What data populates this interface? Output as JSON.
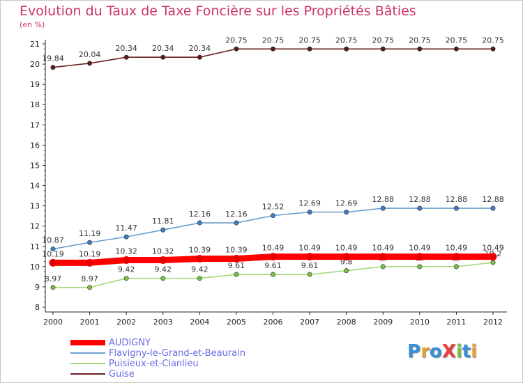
{
  "title": "Evolution du Taux de Taxe Foncière sur les Propriétés Bâties",
  "unit_label": "(en %)",
  "brand": {
    "text": "ProXiti",
    "colors": [
      "#3a8fd8",
      "#e8a030",
      "#3a8fd8",
      "#e84040",
      "#7ac043",
      "#3a8fd8",
      "#e8a030"
    ]
  },
  "chart_data": {
    "type": "line",
    "x": [
      "2000",
      "2001",
      "2002",
      "2003",
      "2004",
      "2005",
      "2006",
      "2007",
      "2008",
      "2009",
      "2010",
      "2011",
      "2012"
    ],
    "ylim": [
      8,
      21
    ],
    "yticks": [
      "8",
      "9",
      "10",
      "11",
      "12",
      "13",
      "14",
      "15",
      "16",
      "17",
      "18",
      "19",
      "20",
      "21"
    ],
    "grid": false,
    "legend_position": "bottom-left",
    "series": [
      {
        "name": "Guise",
        "color": "#6b1f23",
        "marker": "#5a1a1e",
        "values": [
          19.84,
          20.04,
          20.34,
          20.34,
          20.34,
          20.75,
          20.75,
          20.75,
          20.75,
          20.75,
          20.75,
          20.75,
          20.75
        ],
        "labels": [
          "19.84",
          "20.04",
          "20.34",
          "20.34",
          "20.34",
          "20.75",
          "20.75",
          "20.75",
          "20.75",
          "20.75",
          "20.75",
          "20.75",
          "20.75"
        ]
      },
      {
        "name": "Flavigny-le-Grand-et-Beaurain",
        "color": "#6a9ccc",
        "marker": "#3f7fbf",
        "values": [
          10.87,
          11.19,
          11.47,
          11.81,
          12.16,
          12.16,
          12.52,
          12.69,
          12.69,
          12.88,
          12.88,
          12.88,
          12.88
        ],
        "labels": [
          "10.87",
          "11.19",
          "11.47",
          "11.81",
          "12.16",
          "12.16",
          "12.52",
          "12.69",
          "12.69",
          "12.88",
          "12.88",
          "12.88",
          "12.88"
        ]
      },
      {
        "name": "Puisieux-et-Clanlieu",
        "color": "#a6d87a",
        "marker": "#7ac043",
        "values": [
          8.97,
          8.97,
          9.42,
          9.42,
          9.42,
          9.61,
          9.61,
          9.61,
          9.8,
          10,
          10,
          10,
          10.2
        ],
        "labels": [
          "8.97",
          "8.97",
          "9.42",
          "9.42",
          "9.42",
          "9.61",
          "9.61",
          "9.61",
          "9.8",
          "10",
          "10",
          "10",
          "10.2"
        ]
      },
      {
        "name": "AUDIGNY",
        "color": "#ff0000",
        "marker": "#e00000",
        "values": [
          10.19,
          10.19,
          10.32,
          10.32,
          10.39,
          10.39,
          10.49,
          10.49,
          10.49,
          10.49,
          10.49,
          10.49,
          10.49
        ],
        "labels": [
          "10.19",
          "10.19",
          "10.32",
          "10.32",
          "10.39",
          "10.39",
          "10.49",
          "10.49",
          "10.49",
          "10.49",
          "10.49",
          "10.49",
          "10.49"
        ]
      }
    ],
    "legend_order": [
      "AUDIGNY",
      "Flavigny-le-Grand-et-Beaurain",
      "Puisieux-et-Clanlieu",
      "Guise"
    ]
  }
}
